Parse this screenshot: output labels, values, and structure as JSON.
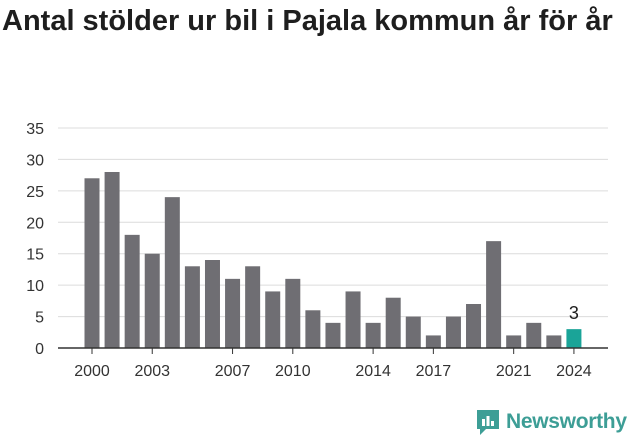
{
  "title": "Antal stölder ur bil i Pajala kommun år för år",
  "brand": {
    "name": "Newsworthy",
    "color": "#3d9e96"
  },
  "colors": {
    "bar": "#6f6e73",
    "highlight": "#1aa498",
    "grid": "#dcdcdc",
    "axis": "#333333"
  },
  "chart_data": {
    "type": "bar",
    "title": "Antal stölder ur bil i Pajala kommun år för år",
    "xlabel": "",
    "ylabel": "",
    "categories": [
      "2000",
      "2001",
      "2002",
      "2003",
      "2004",
      "2005",
      "2006",
      "2007",
      "2008",
      "2009",
      "2010",
      "2011",
      "2012",
      "2013",
      "2014",
      "2015",
      "2016",
      "2017",
      "2018",
      "2019",
      "2020",
      "2021",
      "2022",
      "2023",
      "2024"
    ],
    "values": [
      27,
      28,
      18,
      15,
      24,
      13,
      14,
      11,
      13,
      9,
      11,
      6,
      4,
      9,
      4,
      8,
      5,
      2,
      5,
      7,
      17,
      2,
      4,
      2,
      3
    ],
    "ylim": [
      0,
      35
    ],
    "yticks": [
      0,
      5,
      10,
      15,
      20,
      25,
      30,
      35
    ],
    "xtick_labels": [
      "2000",
      "2003",
      "2007",
      "2010",
      "2014",
      "2017",
      "2021",
      "2024"
    ],
    "highlight": {
      "category": "2024",
      "label": "3"
    },
    "grid": true,
    "legend": "none"
  }
}
